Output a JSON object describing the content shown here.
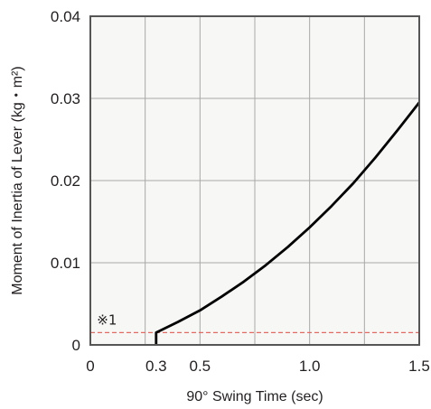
{
  "chart_data": {
    "type": "line",
    "title": "",
    "xlabel": "90°  Swing Time (sec)",
    "ylabel": "Moment of Inertia of Lever (kg・m²)",
    "xlim": [
      0,
      1.5
    ],
    "ylim": [
      0,
      0.04
    ],
    "x_ticks": [
      {
        "value": 0,
        "label": "0"
      },
      {
        "value": 0.3,
        "label": "0.3"
      },
      {
        "value": 0.5,
        "label": "0.5"
      },
      {
        "value": 1.0,
        "label": "1.0"
      },
      {
        "value": 1.5,
        "label": "1.5"
      }
    ],
    "x_gridlines": [
      0.25,
      0.5,
      0.75,
      1.0,
      1.25
    ],
    "y_ticks": [
      {
        "value": 0,
        "label": "0"
      },
      {
        "value": 0.01,
        "label": "0.01"
      },
      {
        "value": 0.02,
        "label": "0.02"
      },
      {
        "value": 0.03,
        "label": "0.03"
      },
      {
        "value": 0.04,
        "label": "0.04"
      }
    ],
    "grid": true,
    "series": [
      {
        "x": [
          0.3,
          0.3,
          0.4,
          0.5,
          0.6,
          0.7,
          0.8,
          0.9,
          1.0,
          1.1,
          1.2,
          1.3,
          1.4,
          1.5
        ],
        "y": [
          0.0,
          0.0015,
          0.0028,
          0.0042,
          0.0059,
          0.0077,
          0.0097,
          0.0119,
          0.0143,
          0.0169,
          0.0197,
          0.0228,
          0.0261,
          0.0295
        ],
        "color": "#000000"
      }
    ],
    "reference_line": {
      "y": 0.0015,
      "color": "#e8685f",
      "style": "dashed"
    },
    "annotation": {
      "text": "※1",
      "x": 0.03,
      "y": 0.0025
    }
  },
  "colors": {
    "plot_background": "#f7f7f6",
    "grid": "#a8a8a8",
    "frame": "#555555"
  }
}
